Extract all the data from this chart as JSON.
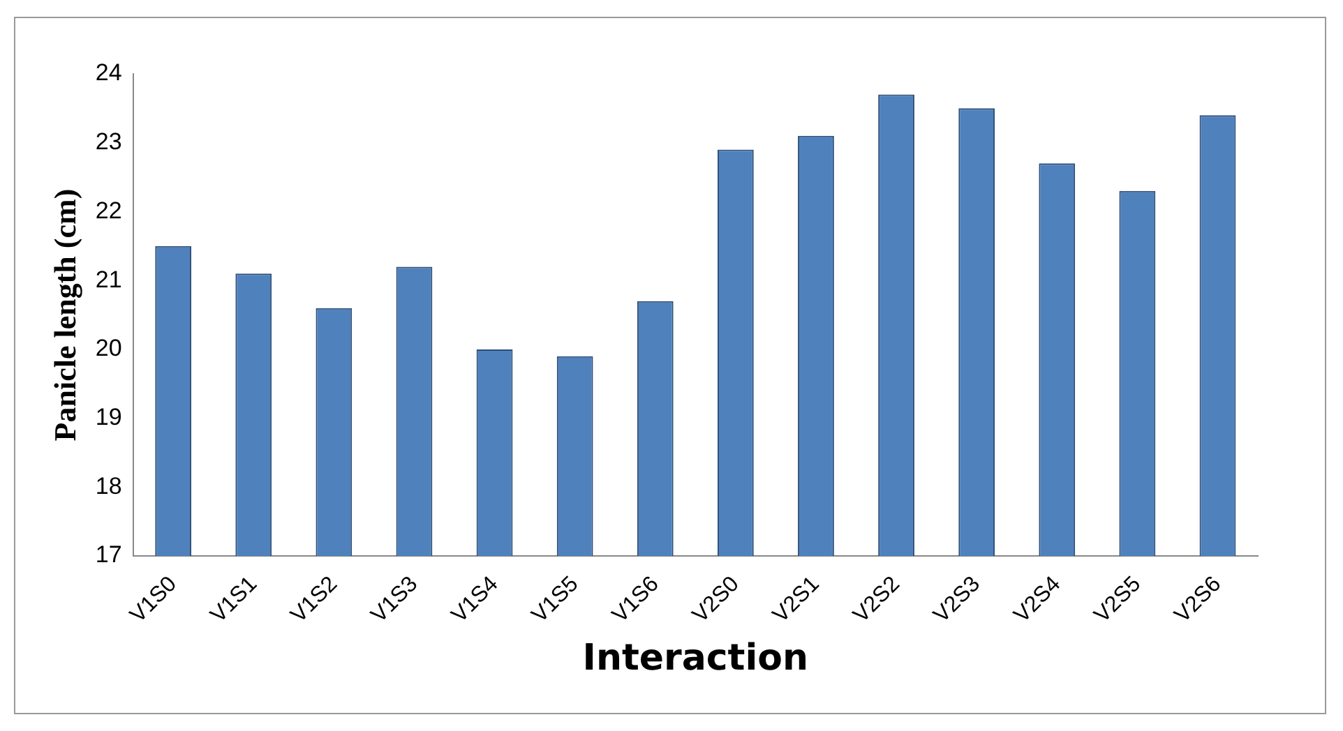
{
  "chart_data": {
    "type": "bar",
    "xlabel": "Interaction",
    "ylabel": "Panicle length (cm)",
    "categories": [
      "V1S0",
      "V1S1",
      "V1S2",
      "V1S3",
      "V1S4",
      "V1S5",
      "V1S6",
      "V2S0",
      "V2S1",
      "V2S2",
      "V2S3",
      "V2S4",
      "V2S5",
      "V2S6"
    ],
    "values": [
      21.5,
      21.1,
      20.6,
      21.2,
      20.0,
      19.9,
      20.7,
      22.9,
      23.1,
      23.7,
      23.5,
      22.7,
      22.3,
      23.4
    ],
    "color": "#4f81bd",
    "ylim": [
      17,
      24
    ],
    "yticks": [
      17,
      18,
      19,
      20,
      21,
      22,
      23,
      24
    ],
    "grid": false
  }
}
